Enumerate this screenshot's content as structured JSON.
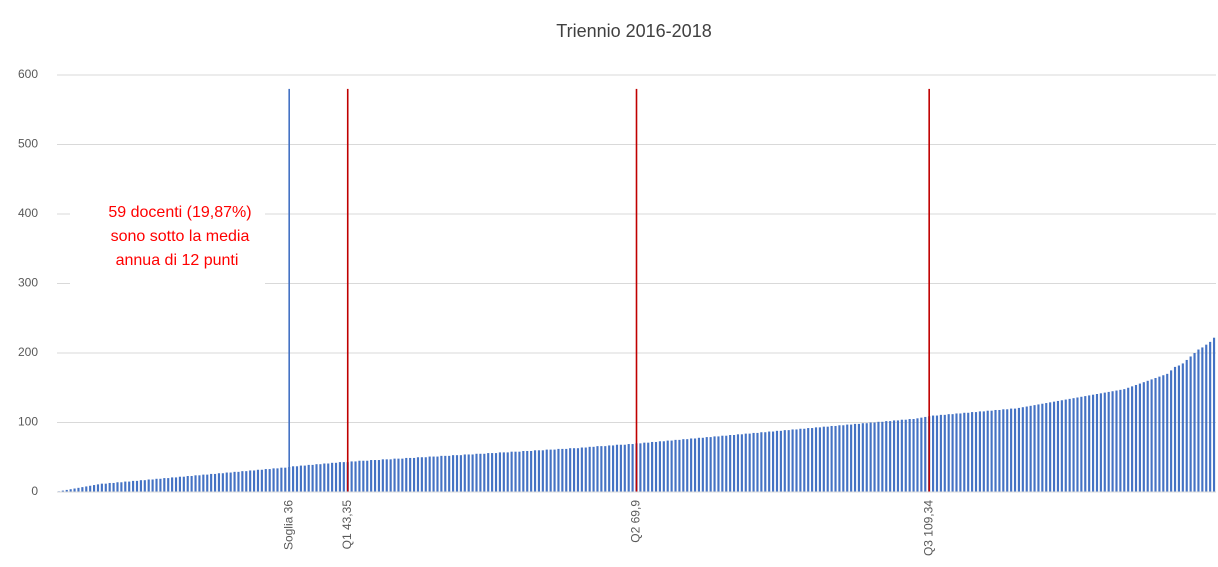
{
  "chart_data": {
    "type": "bar",
    "title": "Triennio 2016-2018",
    "annotation": [
      "59 docenti (19,87%)",
      "sono sotto la media",
      "annua di 12 punti"
    ],
    "annotation_color": "#ff0000",
    "ylim": [
      0,
      600
    ],
    "yticks": [
      0,
      100,
      200,
      300,
      400,
      500,
      600
    ],
    "grid": true,
    "categories": [
      null,
      null,
      null,
      null,
      null,
      null,
      null,
      null,
      null,
      null,
      null,
      null,
      null,
      null,
      null,
      null,
      null,
      null,
      null,
      null,
      null,
      null,
      null,
      null,
      null,
      null,
      null,
      null,
      null,
      null,
      null,
      null,
      null,
      null,
      null,
      null,
      null,
      null,
      null,
      null,
      null,
      null,
      null,
      null,
      null,
      null,
      null,
      null,
      null,
      null,
      null,
      null,
      null,
      null,
      null,
      null,
      null,
      null,
      null,
      "Soglia 36",
      null,
      null,
      null,
      null,
      null,
      null,
      null,
      null,
      null,
      null,
      null,
      null,
      null,
      null,
      "Q1 43,35",
      null,
      null,
      null,
      null,
      null,
      null,
      null,
      null,
      null,
      null,
      null,
      null,
      null,
      null,
      null,
      null,
      null,
      null,
      null,
      null,
      null,
      null,
      null,
      null,
      null,
      null,
      null,
      null,
      null,
      null,
      null,
      null,
      null,
      null,
      null,
      null,
      null,
      null,
      null,
      null,
      null,
      null,
      null,
      null,
      null,
      null,
      null,
      null,
      null,
      null,
      null,
      null,
      null,
      null,
      null,
      null,
      null,
      null,
      null,
      null,
      null,
      null,
      null,
      null,
      null,
      null,
      null,
      null,
      null,
      null,
      null,
      null,
      null,
      "Q2 69,9",
      null,
      null,
      null,
      null,
      null,
      null,
      null,
      null,
      null,
      null,
      null,
      null,
      null,
      null,
      null,
      null,
      null,
      null,
      null,
      null,
      null,
      null,
      null,
      null,
      null,
      null,
      null,
      null,
      null,
      null,
      null,
      null,
      null,
      null,
      null,
      null,
      null,
      null,
      null,
      null,
      null,
      null,
      null,
      null,
      null,
      null,
      null,
      null,
      null,
      null,
      null,
      null,
      null,
      null,
      null,
      null,
      null,
      null,
      null,
      null,
      null,
      null,
      null,
      null,
      null,
      null,
      null,
      null,
      null,
      null,
      null,
      null,
      null,
      null,
      "Q3 109,34",
      null,
      null,
      null,
      null,
      null,
      null,
      null,
      null,
      null,
      null,
      null,
      null,
      null,
      null,
      null,
      null,
      null,
      null,
      null,
      null,
      null,
      null,
      null,
      null,
      null,
      null,
      null,
      null,
      null,
      null,
      null,
      null,
      null,
      null,
      null,
      null,
      null,
      null,
      null,
      null,
      null,
      null,
      null,
      null,
      null,
      null,
      null,
      null,
      null,
      null,
      null,
      null,
      null,
      null,
      null,
      null,
      null,
      null,
      null,
      null,
      null,
      null,
      null,
      null,
      null,
      null,
      null,
      null,
      null,
      null,
      null,
      null,
      null
    ],
    "series": [
      {
        "color": "#4472c4",
        "values": [
          1,
          2,
          3,
          4,
          5,
          6,
          7,
          8,
          9,
          10,
          11,
          12,
          12,
          13,
          13,
          14,
          14,
          15,
          15,
          16,
          16,
          17,
          17,
          18,
          18,
          19,
          19,
          20,
          20,
          21,
          21,
          22,
          22,
          23,
          23,
          24,
          24,
          25,
          25,
          26,
          26,
          27,
          27,
          28,
          28,
          29,
          29,
          30,
          30,
          31,
          31,
          32,
          32,
          33,
          33,
          34,
          34,
          35,
          35,
          36,
          37,
          37,
          38,
          38,
          39,
          39,
          40,
          40,
          41,
          41,
          42,
          42,
          43,
          43,
          43,
          44,
          44,
          45,
          45,
          45,
          46,
          46,
          46,
          47,
          47,
          47,
          48,
          48,
          48,
          49,
          49,
          49,
          50,
          50,
          50,
          51,
          51,
          51,
          52,
          52,
          52,
          53,
          53,
          53,
          54,
          54,
          54,
          55,
          55,
          55,
          56,
          56,
          56,
          57,
          57,
          57,
          58,
          58,
          58,
          59,
          59,
          59,
          60,
          60,
          60,
          61,
          61,
          61,
          62,
          62,
          62,
          63,
          63,
          63,
          64,
          64,
          65,
          65,
          66,
          66,
          66,
          67,
          67,
          68,
          68,
          68,
          69,
          69,
          70,
          70,
          71,
          71,
          72,
          72,
          73,
          73,
          74,
          74,
          75,
          75,
          76,
          76,
          77,
          77,
          78,
          78,
          79,
          79,
          80,
          80,
          81,
          81,
          82,
          82,
          83,
          83,
          84,
          84,
          85,
          85,
          86,
          86,
          87,
          87,
          88,
          88,
          89,
          89,
          90,
          90,
          91,
          91,
          92,
          92,
          93,
          93,
          94,
          94,
          95,
          95,
          96,
          96,
          97,
          97,
          98,
          98,
          99,
          99,
          100,
          100,
          101,
          101,
          102,
          102,
          103,
          103,
          104,
          104,
          105,
          105,
          106,
          107,
          108,
          109,
          110,
          110,
          111,
          111,
          112,
          112,
          113,
          113,
          114,
          114,
          115,
          115,
          116,
          116,
          117,
          117,
          118,
          118,
          119,
          119,
          120,
          120,
          121,
          122,
          123,
          124,
          125,
          126,
          127,
          128,
          129,
          130,
          131,
          132,
          133,
          134,
          135,
          136,
          137,
          138,
          139,
          140,
          141,
          142,
          143,
          144,
          145,
          146,
          147,
          148,
          150,
          152,
          154,
          156,
          158,
          160,
          162,
          164,
          166,
          168,
          170,
          175,
          180,
          182,
          185,
          190,
          195,
          200,
          205,
          208,
          212,
          216,
          222
        ]
      },
      {
        "color": "#4472c4",
        "values": [
          null,
          null,
          null,
          null,
          null,
          null,
          null,
          null,
          null,
          null,
          null,
          null,
          null,
          null,
          null,
          null,
          null,
          null,
          null,
          null,
          null,
          null,
          null,
          null,
          null,
          null,
          null,
          null,
          null,
          null,
          null,
          null,
          null,
          null,
          null,
          null,
          null,
          null,
          null,
          null,
          null,
          null,
          null,
          null,
          null,
          null,
          null,
          null,
          null,
          null,
          null,
          null,
          null,
          null,
          null,
          null,
          null,
          null,
          null,
          580,
          null,
          null,
          null,
          null,
          null,
          null,
          null,
          null,
          null,
          null,
          null,
          null,
          null,
          null,
          null,
          null,
          null,
          null,
          null,
          null,
          null,
          null,
          null,
          null,
          null,
          null,
          null,
          null,
          null,
          null,
          null,
          null,
          null,
          null,
          null,
          null,
          null,
          null,
          null,
          null,
          null,
          null,
          null,
          null,
          null,
          null,
          null,
          null,
          null,
          null,
          null,
          null,
          null,
          null,
          null,
          null,
          null,
          null,
          null,
          null,
          null,
          null,
          null,
          null,
          null,
          null,
          null,
          null,
          null,
          null,
          null,
          null,
          null,
          null,
          null,
          null,
          null,
          null,
          null,
          null,
          null,
          null,
          null,
          null,
          null,
          null,
          null,
          null,
          null,
          null,
          null,
          null,
          null,
          null,
          null,
          null,
          null,
          null,
          null,
          null,
          null,
          null,
          null,
          null,
          null,
          null,
          null,
          null,
          null,
          null,
          null,
          null,
          null,
          null,
          null,
          null,
          null,
          null,
          null,
          null,
          null,
          null,
          null,
          null,
          null,
          null,
          null,
          null,
          null,
          null,
          null,
          null,
          null,
          null,
          null,
          null,
          null,
          null,
          null,
          null,
          null,
          null,
          null,
          null,
          null,
          null,
          null,
          null,
          null,
          null,
          null,
          null,
          null,
          null,
          null,
          null,
          null,
          null,
          null,
          null,
          null,
          null,
          null,
          null,
          null,
          null,
          null,
          null,
          null,
          null,
          null,
          null,
          null,
          null,
          null,
          null,
          null,
          null,
          null,
          null,
          null,
          null,
          null,
          null,
          null,
          null,
          null,
          null,
          null,
          null,
          null,
          null,
          null,
          null,
          null,
          null,
          null,
          null,
          null,
          null,
          null,
          null,
          null,
          null,
          null,
          null,
          null,
          null,
          null,
          null,
          null,
          null,
          null,
          null,
          null,
          null,
          null,
          null,
          null,
          null,
          null,
          null,
          null,
          null,
          null,
          null,
          null,
          null,
          null,
          null,
          null,
          null,
          null,
          null,
          null,
          null,
          null
        ]
      },
      {
        "color": "#c00000",
        "values": [
          null,
          null,
          null,
          null,
          null,
          null,
          null,
          null,
          null,
          null,
          null,
          null,
          null,
          null,
          null,
          null,
          null,
          null,
          null,
          null,
          null,
          null,
          null,
          null,
          null,
          null,
          null,
          null,
          null,
          null,
          null,
          null,
          null,
          null,
          null,
          null,
          null,
          null,
          null,
          null,
          null,
          null,
          null,
          null,
          null,
          null,
          null,
          null,
          null,
          null,
          null,
          null,
          null,
          null,
          null,
          null,
          null,
          null,
          null,
          null,
          null,
          null,
          null,
          null,
          null,
          null,
          null,
          null,
          null,
          null,
          null,
          null,
          null,
          null,
          580,
          null,
          null,
          null,
          null,
          null,
          null,
          null,
          null,
          null,
          null,
          null,
          null,
          null,
          null,
          null,
          null,
          null,
          null,
          null,
          null,
          null,
          null,
          null,
          null,
          null,
          null,
          null,
          null,
          null,
          null,
          null,
          null,
          null,
          null,
          null,
          null,
          null,
          null,
          null,
          null,
          null,
          null,
          null,
          null,
          null,
          null,
          null,
          null,
          null,
          null,
          null,
          null,
          null,
          null,
          null,
          null,
          null,
          null,
          null,
          null,
          null,
          null,
          null,
          null,
          null,
          null,
          null,
          null,
          null,
          null,
          null,
          null,
          null,
          580,
          null,
          null,
          null,
          null,
          null,
          null,
          null,
          null,
          null,
          null,
          null,
          null,
          null,
          null,
          null,
          null,
          null,
          null,
          null,
          null,
          null,
          null,
          null,
          null,
          null,
          null,
          null,
          null,
          null,
          null,
          null,
          null,
          null,
          null,
          null,
          null,
          null,
          null,
          null,
          null,
          null,
          null,
          null,
          null,
          null,
          null,
          null,
          null,
          null,
          null,
          null,
          null,
          null,
          null,
          null,
          null,
          null,
          null,
          null,
          null,
          null,
          null,
          null,
          null,
          null,
          null,
          null,
          null,
          null,
          null,
          null,
          null,
          null,
          null,
          580,
          null,
          null,
          null,
          null,
          null,
          null,
          null,
          null,
          null,
          null,
          null,
          null,
          null,
          null,
          null,
          null,
          null,
          null,
          null,
          null,
          null,
          null,
          null,
          null,
          null,
          null,
          null,
          null,
          null,
          null,
          null,
          null,
          null,
          null,
          null,
          null,
          null,
          null,
          null,
          null,
          null,
          null,
          null,
          null,
          null,
          null,
          null,
          null,
          null,
          null,
          null,
          null,
          null,
          null,
          null,
          null,
          null,
          null,
          null,
          null,
          null,
          null,
          null,
          null,
          null,
          null,
          null,
          null,
          null,
          null,
          null,
          null,
          null
        ]
      }
    ]
  }
}
